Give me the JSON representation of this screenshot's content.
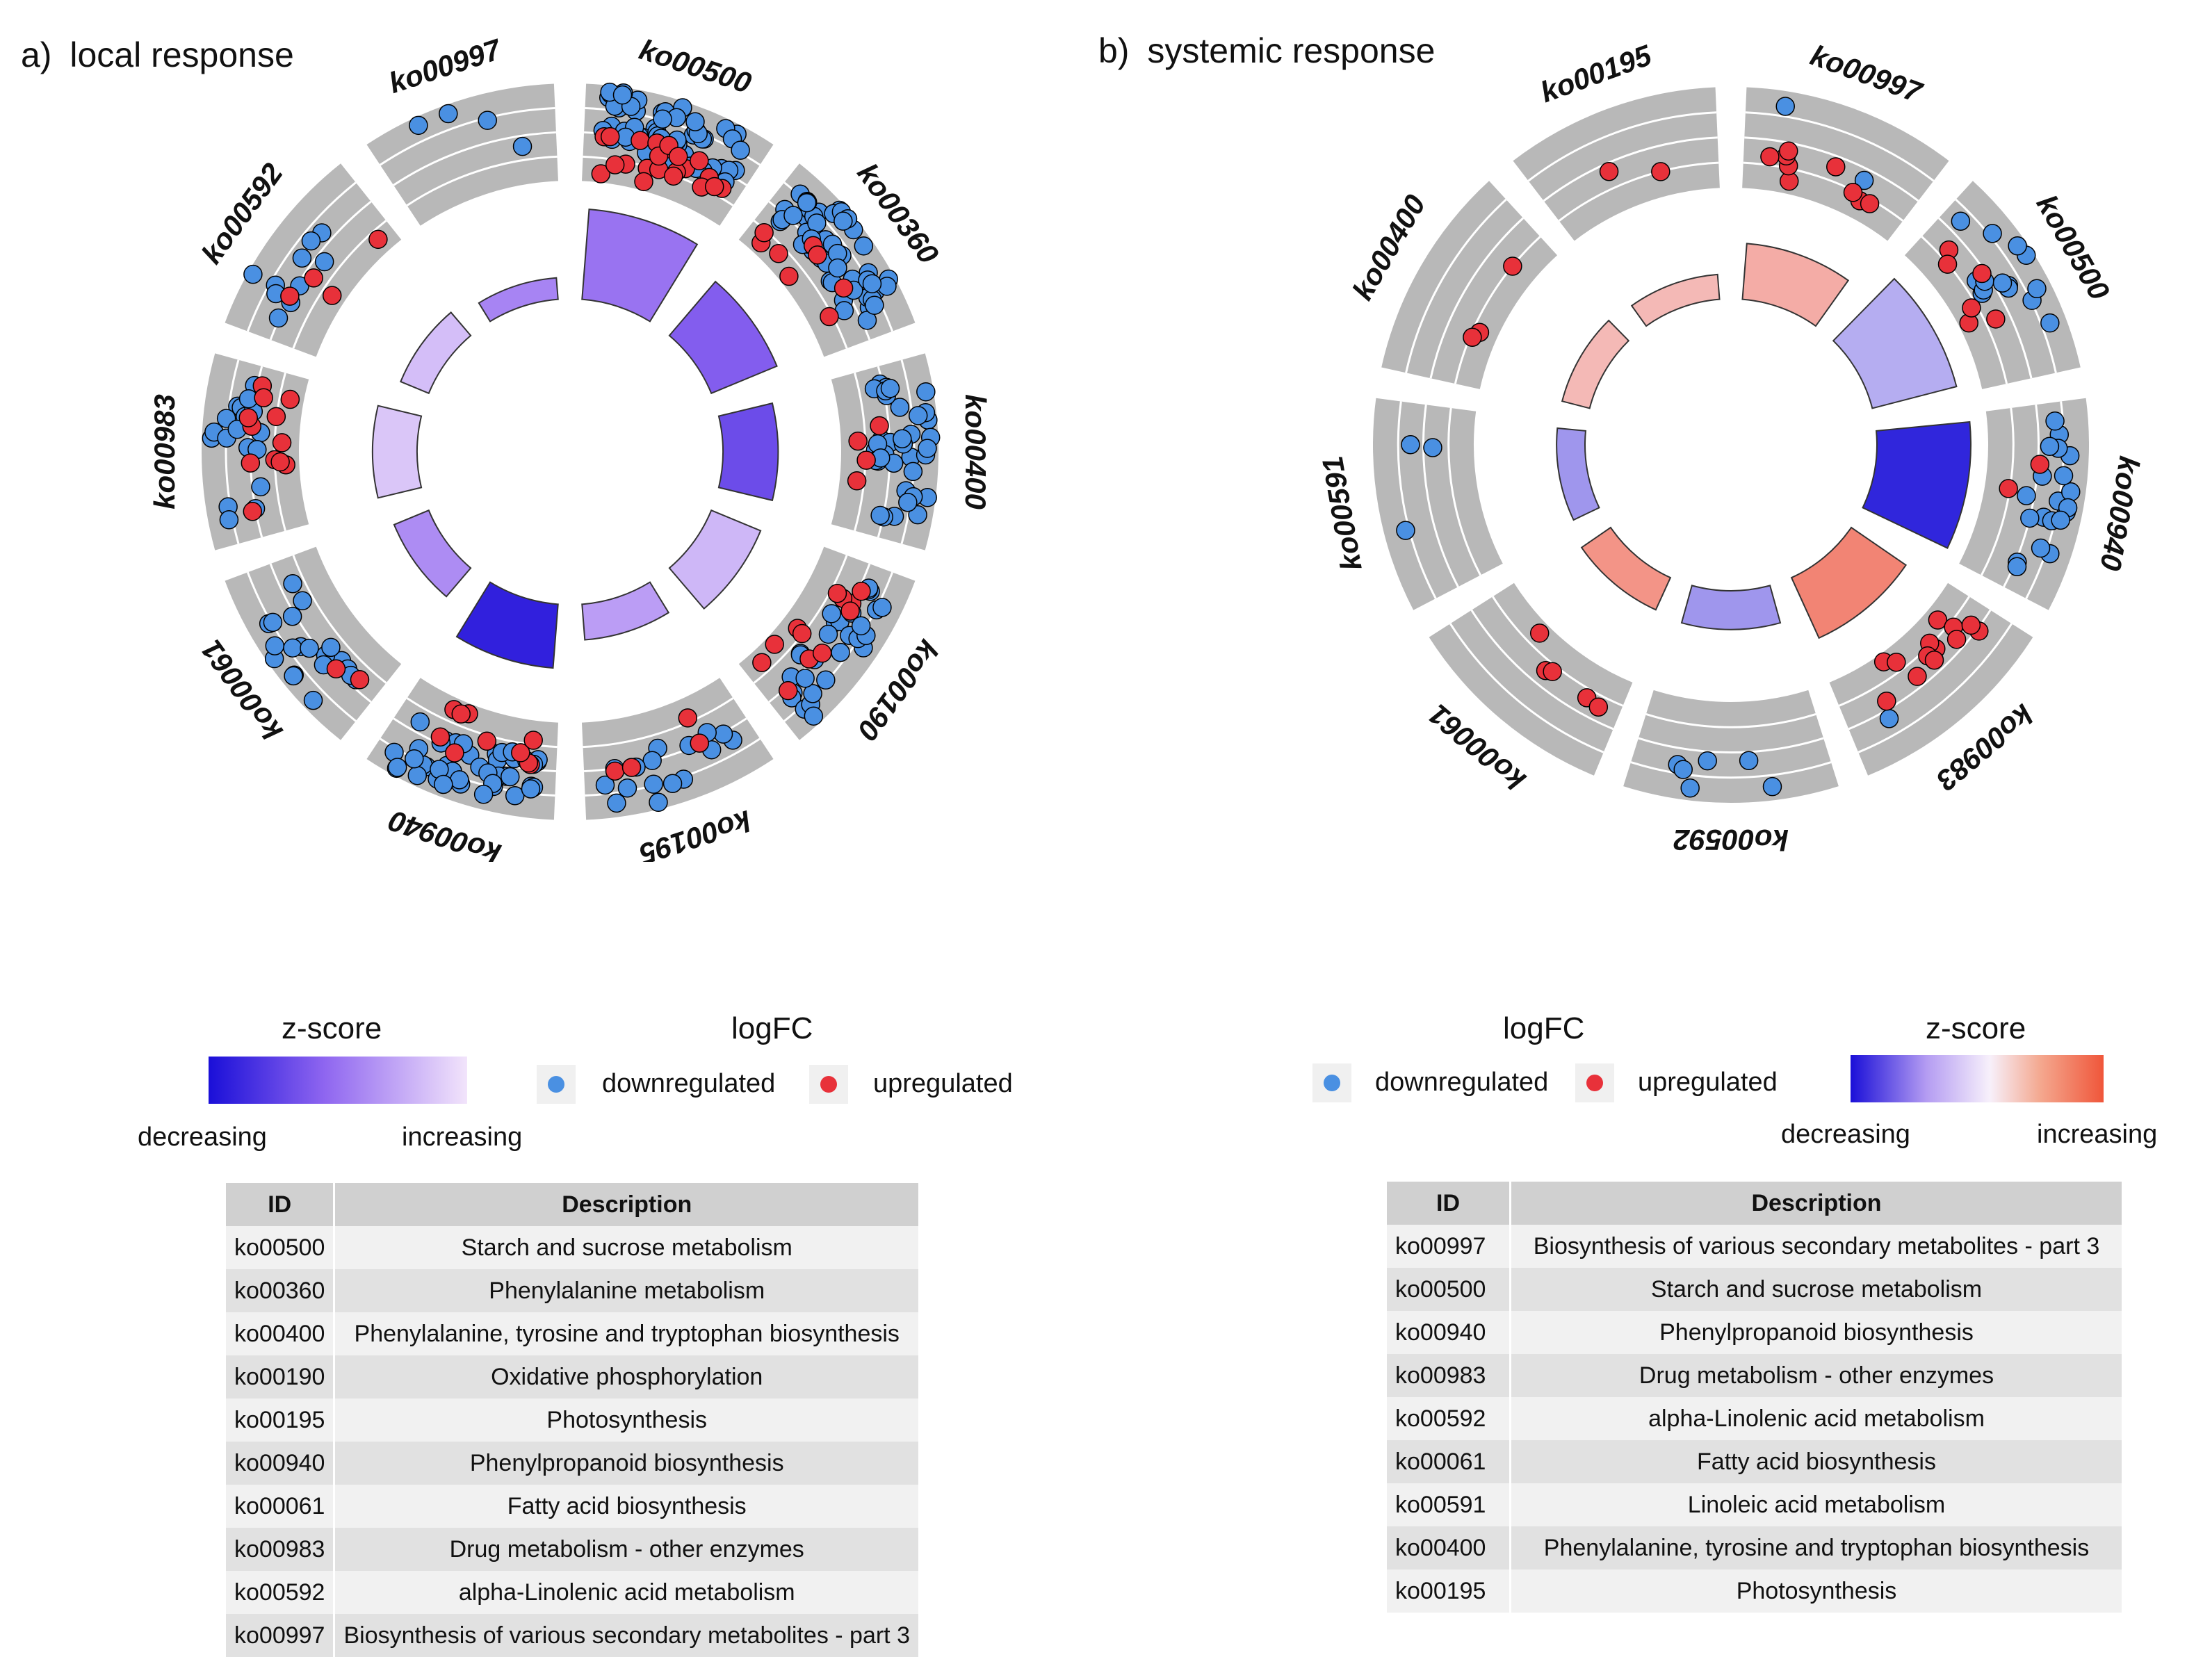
{
  "panels": [
    {
      "id": "a",
      "panel_label": "a)",
      "title": "local response",
      "legend": {
        "zscore_title": "z-score",
        "zscore_low": "decreasing",
        "zscore_high": "increasing",
        "logfc_title": "logFC",
        "down_label": "downregulated",
        "up_label": "upregulated"
      },
      "table": {
        "headers": [
          "ID",
          "Description"
        ],
        "rows": [
          [
            "ko00500",
            "Starch and sucrose metabolism"
          ],
          [
            "ko00360",
            "Phenylalanine metabolism"
          ],
          [
            "ko00400",
            "Phenylalanine, tyrosine and tryptophan biosynthesis"
          ],
          [
            "ko00190",
            "Oxidative phosphorylation"
          ],
          [
            "ko00195",
            "Photosynthesis"
          ],
          [
            "ko00940",
            "Phenylpropanoid biosynthesis"
          ],
          [
            "ko00061",
            "Fatty acid biosynthesis"
          ],
          [
            "ko00983",
            "Drug metabolism - other enzymes"
          ],
          [
            "ko00592",
            "alpha-Linolenic acid metabolism"
          ],
          [
            "ko00997",
            "Biosynthesis of various secondary metabolites - part 3"
          ]
        ]
      }
    },
    {
      "id": "b",
      "panel_label": "b)",
      "title": "systemic response",
      "legend": {
        "zscore_title": "z-score",
        "zscore_low": "decreasing",
        "zscore_high": "increasing",
        "logfc_title": "logFC",
        "down_label": "downregulated",
        "up_label": "upregulated"
      },
      "table": {
        "headers": [
          "ID",
          "Description"
        ],
        "rows": [
          [
            "ko00997",
            "Biosynthesis of various secondary metabolites - part 3"
          ],
          [
            "ko00500",
            "Starch and sucrose metabolism"
          ],
          [
            "ko00940",
            "Phenylpropanoid biosynthesis"
          ],
          [
            "ko00983",
            "Drug metabolism - other enzymes"
          ],
          [
            "ko00592",
            "alpha-Linolenic acid metabolism"
          ],
          [
            "ko00061",
            "Fatty acid biosynthesis"
          ],
          [
            "ko00591",
            "Linoleic acid metabolism"
          ],
          [
            "ko00400",
            "Phenylalanine, tyrosine and tryptophan biosynthesis"
          ],
          [
            "ko00195",
            "Photosynthesis"
          ]
        ]
      }
    }
  ],
  "chart_data": [
    {
      "type": "circular-goplot",
      "panel": "a",
      "title": "local response",
      "colors": {
        "down": "#4a90e2",
        "up": "#e8313a",
        "sector_bg": "#b8b8b8",
        "zscore_low": "#1a0fd8",
        "zscore_mid": "#8f66f0",
        "zscore_high": "#f2e4fb"
      },
      "terms": [
        {
          "id": "ko00500",
          "gene_count": 82,
          "zscore_level": 0.55,
          "down": 60,
          "up": 22
        },
        {
          "id": "ko00360",
          "gene_count": 60,
          "zscore_level": 0.45,
          "down": 52,
          "up": 8
        },
        {
          "id": "ko00400",
          "gene_count": 42,
          "zscore_level": 0.35,
          "down": 38,
          "up": 4
        },
        {
          "id": "ko00190",
          "gene_count": 40,
          "zscore_level": 0.82,
          "down": 28,
          "up": 12
        },
        {
          "id": "ko00195",
          "gene_count": 20,
          "zscore_level": 0.72,
          "down": 16,
          "up": 4
        },
        {
          "id": "ko00940",
          "gene_count": 52,
          "zscore_level": 0.1,
          "down": 42,
          "up": 10
        },
        {
          "id": "ko00061",
          "gene_count": 22,
          "zscore_level": 0.65,
          "down": 20,
          "up": 2
        },
        {
          "id": "ko00983",
          "gene_count": 30,
          "zscore_level": 0.88,
          "down": 18,
          "up": 12
        },
        {
          "id": "ko00592",
          "gene_count": 14,
          "zscore_level": 0.85,
          "down": 10,
          "up": 4
        },
        {
          "id": "ko00997",
          "gene_count": 4,
          "zscore_level": 0.62,
          "down": 4,
          "up": 0
        }
      ]
    },
    {
      "type": "circular-goplot",
      "panel": "b",
      "title": "systemic response",
      "colors": {
        "down": "#4a90e2",
        "up": "#e8313a",
        "sector_bg": "#b8b8b8",
        "zscore_low": "#1a0fd8",
        "zscore_mid": "#f7f0fb",
        "zscore_high": "#f0563a"
      },
      "terms": [
        {
          "id": "ko00997",
          "gene_count": 11,
          "zscore_level": 0.72,
          "down": 2,
          "up": 9
        },
        {
          "id": "ko00500",
          "gene_count": 20,
          "zscore_level": 0.35,
          "down": 14,
          "up": 6
        },
        {
          "id": "ko00940",
          "gene_count": 22,
          "zscore_level": 0.05,
          "down": 20,
          "up": 2
        },
        {
          "id": "ko00983",
          "gene_count": 14,
          "zscore_level": 0.85,
          "down": 1,
          "up": 13
        },
        {
          "id": "ko00592",
          "gene_count": 6,
          "zscore_level": 0.3,
          "down": 6,
          "up": 0
        },
        {
          "id": "ko00061",
          "gene_count": 5,
          "zscore_level": 0.8,
          "down": 0,
          "up": 5
        },
        {
          "id": "ko00591",
          "gene_count": 3,
          "zscore_level": 0.3,
          "down": 3,
          "up": 0
        },
        {
          "id": "ko00400",
          "gene_count": 3,
          "zscore_level": 0.68,
          "down": 0,
          "up": 3
        },
        {
          "id": "ko00195",
          "gene_count": 2,
          "zscore_level": 0.68,
          "down": 0,
          "up": 2
        }
      ]
    }
  ]
}
